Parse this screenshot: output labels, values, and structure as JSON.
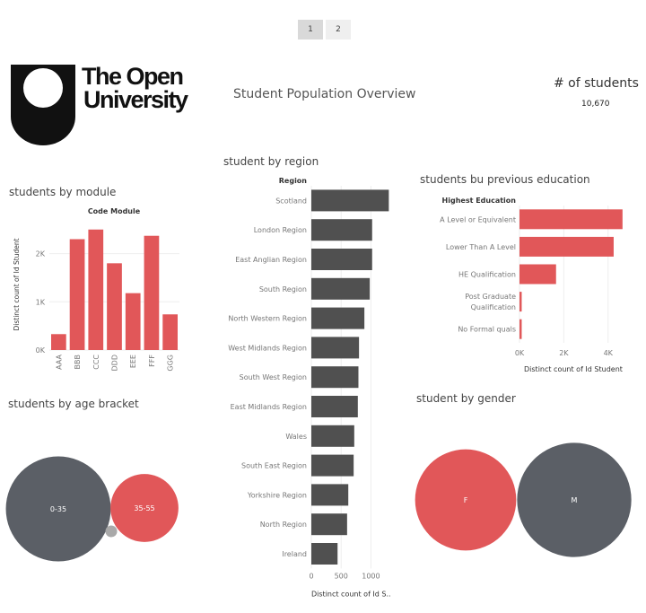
{
  "pager": {
    "pages": [
      "1",
      "2"
    ]
  },
  "logo": {
    "line1": "The Open",
    "line2": "University"
  },
  "dashboard_title": "Student Population Overview",
  "kpi": {
    "label": "# of students",
    "value": "10,670"
  },
  "colors": {
    "red": "#e15759",
    "dark": "#505050",
    "gray": "#5b5f66",
    "light": "#a9a9a9"
  },
  "chart_data": [
    {
      "id": "module",
      "type": "bar",
      "title": "students by module",
      "header": "Code Module",
      "categories": [
        "AAA",
        "BBB",
        "CCC",
        "DDD",
        "EEE",
        "FFF",
        "GGG"
      ],
      "values": [
        330,
        2300,
        2500,
        1800,
        1180,
        2370,
        740
      ],
      "ylabel": "Distinct count of Id Student",
      "yticks": [
        0,
        1000,
        2000
      ],
      "ytick_labels": [
        "0K",
        "1K",
        "2K"
      ],
      "ylim": [
        0,
        2700
      ]
    },
    {
      "id": "region",
      "type": "bar",
      "orientation": "horizontal",
      "title": "student by region",
      "header": "Region",
      "categories": [
        "Scotland",
        "London Region",
        "East Anglian Region",
        "South Region",
        "North Western Region",
        "West Midlands Region",
        "South West Region",
        "East Midlands Region",
        "Wales",
        "South East Region",
        "Yorkshire Region",
        "North Region",
        "Ireland"
      ],
      "values": [
        1300,
        1020,
        1020,
        980,
        890,
        800,
        790,
        780,
        720,
        710,
        620,
        600,
        440
      ],
      "xlabel": "Distinct count of Id S..",
      "xticks": [
        0,
        500,
        1000
      ],
      "xtick_labels": [
        "0",
        "500",
        "1000"
      ],
      "xlim": [
        0,
        1400
      ]
    },
    {
      "id": "education",
      "type": "bar",
      "orientation": "horizontal",
      "title": "students bu previous education",
      "header": "Highest Education",
      "categories": [
        [
          "A Level or Equivalent"
        ],
        [
          "Lower Than A Level"
        ],
        [
          "HE Qualification"
        ],
        [
          "Post Graduate",
          "Qualification"
        ],
        [
          "No Formal quals"
        ]
      ],
      "values": [
        4650,
        4250,
        1650,
        100,
        100
      ],
      "xlabel": "Distinct count of Id Student",
      "xticks": [
        0,
        2000,
        4000
      ],
      "xtick_labels": [
        "0K",
        "2K",
        "4K"
      ],
      "xlim": [
        0,
        4900
      ]
    },
    {
      "id": "age",
      "type": "bubble",
      "title": "students by age bracket",
      "items": [
        {
          "label": "0-35",
          "value": 7500
        },
        {
          "label": "35-55",
          "value": 3100
        },
        {
          "label": "",
          "value": 70
        }
      ]
    },
    {
      "id": "gender",
      "type": "bubble",
      "title": "student by gender",
      "items": [
        {
          "label": "F",
          "value": 4900
        },
        {
          "label": "M",
          "value": 5770
        }
      ]
    }
  ]
}
